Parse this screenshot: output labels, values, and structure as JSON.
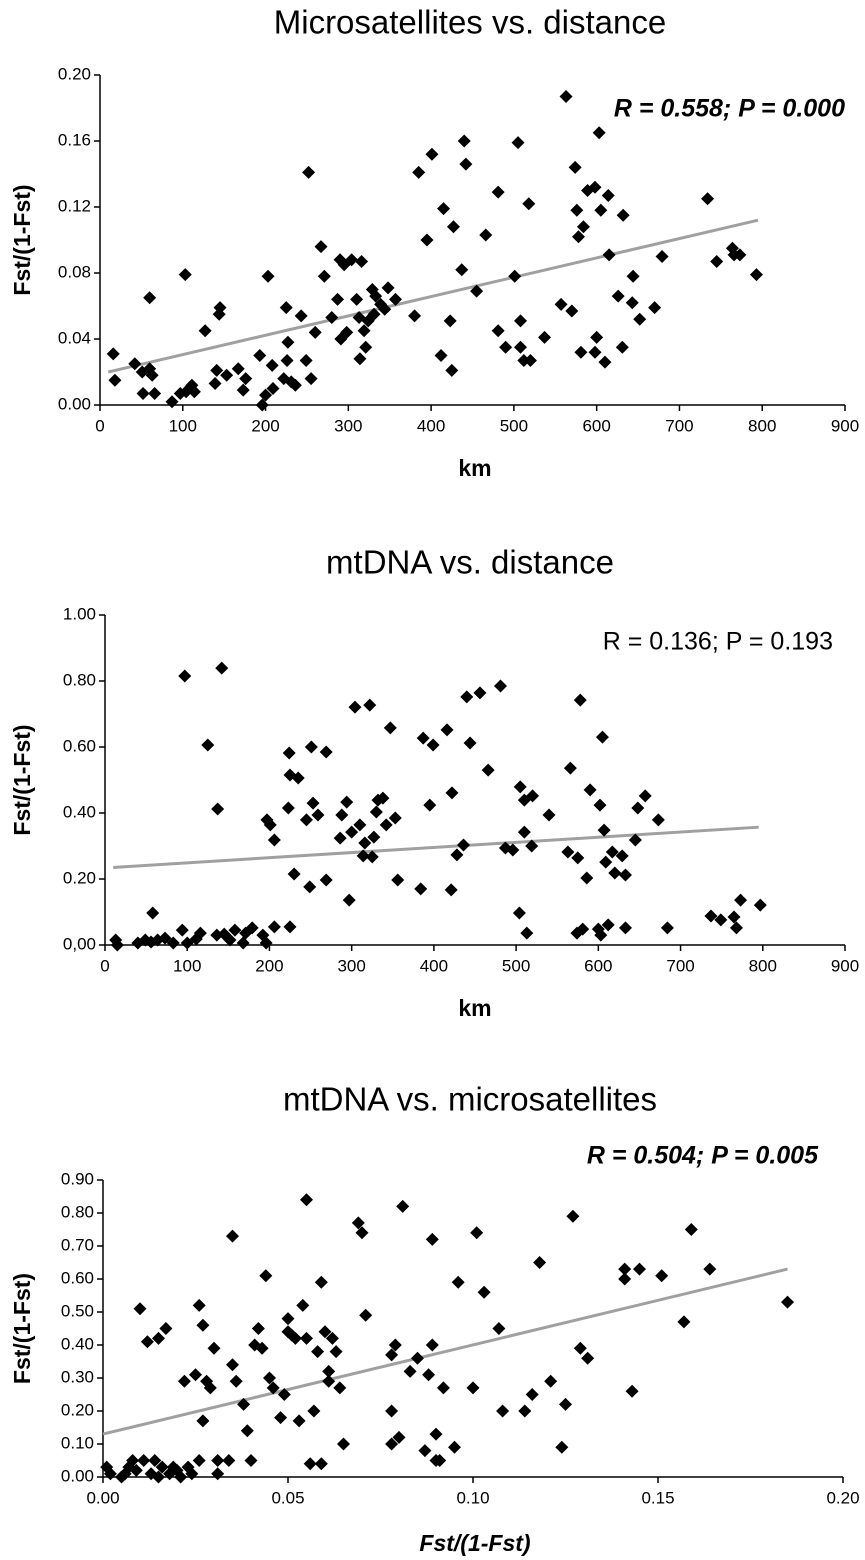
{
  "chart_data": [
    {
      "type": "scatter",
      "title": "Microsatellites vs. distance",
      "xlabel": "km",
      "ylabel": "Fst/(1-Fst)",
      "annotation": "R = 0.558; P = 0.000",
      "annotation_bold": true,
      "color": "#000000",
      "trend_color": "#a0a0a0",
      "x": [
        16,
        18,
        42,
        51,
        52,
        60,
        60,
        63,
        66,
        87,
        97,
        103,
        104,
        111,
        114,
        127,
        139,
        141,
        144,
        145,
        153,
        167,
        173,
        176,
        193,
        196,
        200,
        203,
        208,
        209,
        222,
        225,
        226,
        227,
        231,
        236,
        243,
        249,
        252,
        255,
        260,
        267,
        271,
        280,
        287,
        290,
        291,
        295,
        298,
        304,
        310,
        313,
        314,
        316,
        319,
        321,
        324,
        329,
        331,
        333,
        339,
        344,
        348,
        357,
        380,
        385,
        395,
        401,
        412,
        415,
        423,
        425,
        427,
        437,
        440,
        442,
        455,
        466,
        481,
        481,
        490,
        501,
        505,
        508,
        508,
        512,
        518,
        520,
        537,
        557,
        563,
        570,
        574,
        576,
        578,
        581,
        584,
        589,
        598,
        598,
        600,
        603,
        605,
        610,
        614,
        615,
        626,
        631,
        632,
        643,
        644,
        652,
        670,
        679,
        734,
        745,
        764,
        766,
        773,
        793
      ],
      "values": [
        0.031,
        0.015,
        0.025,
        0.02,
        0.007,
        0.022,
        0.065,
        0.018,
        0.007,
        0.002,
        0.007,
        0.079,
        0.008,
        0.012,
        0.008,
        0.045,
        0.013,
        0.021,
        0.055,
        0.059,
        0.018,
        0.022,
        0.009,
        0.016,
        0.03,
        0.0,
        0.006,
        0.078,
        0.024,
        0.01,
        0.016,
        0.059,
        0.027,
        0.038,
        0.014,
        0.012,
        0.054,
        0.027,
        0.141,
        0.016,
        0.044,
        0.096,
        0.078,
        0.053,
        0.064,
        0.088,
        0.04,
        0.085,
        0.044,
        0.088,
        0.064,
        0.053,
        0.028,
        0.087,
        0.045,
        0.035,
        0.051,
        0.07,
        0.055,
        0.066,
        0.061,
        0.058,
        0.071,
        0.064,
        0.054,
        0.141,
        0.1,
        0.152,
        0.03,
        0.119,
        0.051,
        0.021,
        0.108,
        0.082,
        0.16,
        0.146,
        0.069,
        0.103,
        0.129,
        0.045,
        0.035,
        0.078,
        0.159,
        0.051,
        0.035,
        0.027,
        0.122,
        0.027,
        0.041,
        0.061,
        0.187,
        0.057,
        0.144,
        0.118,
        0.102,
        0.032,
        0.108,
        0.13,
        0.032,
        0.132,
        0.041,
        0.165,
        0.118,
        0.026,
        0.127,
        0.091,
        0.066,
        0.035,
        0.115,
        0.062,
        0.078,
        0.052,
        0.059,
        0.09,
        0.125,
        0.087,
        0.095,
        0.091,
        0.091,
        0.079
      ],
      "trendline": {
        "x": [
          10,
          795
        ],
        "y": [
          0.02,
          0.112
        ]
      },
      "xlim": [
        0,
        900
      ],
      "xticks": [
        0,
        100,
        200,
        300,
        400,
        500,
        600,
        700,
        800,
        900
      ],
      "ylim": [
        0,
        0.2
      ],
      "yticks": [
        {
          "value": 0,
          "label": "0.00"
        },
        {
          "value": 0.04,
          "label": "0.04"
        },
        {
          "value": 0.08,
          "label": "0.08"
        },
        {
          "value": 0.12,
          "label": "0.12"
        },
        {
          "value": 0.16,
          "label": "0.16"
        },
        {
          "value": 0.2,
          "label": "0.20"
        }
      ]
    },
    {
      "type": "scatter",
      "title": "mtDNA vs. distance",
      "xlabel": "km",
      "ylabel": "Fst/(1-Fst)",
      "annotation": "R = 0.136; P = 0.193",
      "annotation_bold": false,
      "color": "#000000",
      "trend_color": "#a0a0a0",
      "x": [
        13,
        15,
        40,
        49,
        56,
        58,
        64,
        73,
        83,
        94,
        97,
        100,
        111,
        116,
        125,
        136,
        137,
        142,
        145,
        152,
        158,
        168,
        171,
        179,
        192,
        196,
        197,
        201,
        206,
        206,
        223,
        224,
        225,
        225,
        230,
        235,
        245,
        249,
        251,
        253,
        259,
        269,
        269,
        286,
        288,
        294,
        297,
        300,
        304,
        310,
        314,
        316,
        322,
        325,
        327,
        330,
        332,
        338,
        342,
        347,
        353,
        356,
        384,
        387,
        395,
        399,
        416,
        421,
        422,
        428,
        436,
        440,
        444,
        456,
        466,
        481,
        487,
        496,
        504,
        505,
        510,
        510,
        513,
        519,
        520,
        540,
        563,
        566,
        574,
        575,
        578,
        581,
        586,
        590,
        600,
        602,
        603,
        605,
        607,
        609,
        612,
        617,
        620,
        629,
        633,
        633,
        645,
        648,
        657,
        673,
        684,
        737,
        749,
        765,
        768,
        773,
        797
      ],
      "values": [
        0.015,
        0.0,
        0.006,
        0.015,
        0.009,
        0.097,
        0.015,
        0.021,
        0.006,
        0.045,
        0.815,
        0.006,
        0.018,
        0.036,
        0.606,
        0.03,
        0.412,
        0.839,
        0.033,
        0.015,
        0.045,
        0.006,
        0.036,
        0.052,
        0.03,
        0.006,
        0.379,
        0.364,
        0.318,
        0.055,
        0.415,
        0.582,
        0.055,
        0.515,
        0.215,
        0.506,
        0.379,
        0.176,
        0.6,
        0.43,
        0.394,
        0.585,
        0.197,
        0.324,
        0.394,
        0.433,
        0.136,
        0.342,
        0.721,
        0.364,
        0.27,
        0.309,
        0.727,
        0.267,
        0.327,
        0.403,
        0.439,
        0.445,
        0.364,
        0.658,
        0.385,
        0.197,
        0.17,
        0.627,
        0.424,
        0.606,
        0.652,
        0.167,
        0.461,
        0.273,
        0.303,
        0.752,
        0.612,
        0.764,
        0.53,
        0.785,
        0.294,
        0.288,
        0.097,
        0.479,
        0.439,
        0.342,
        0.036,
        0.3,
        0.452,
        0.394,
        0.282,
        0.536,
        0.036,
        0.264,
        0.742,
        0.048,
        0.203,
        0.47,
        0.048,
        0.424,
        0.03,
        0.63,
        0.348,
        0.251,
        0.061,
        0.282,
        0.218,
        0.27,
        0.052,
        0.212,
        0.318,
        0.415,
        0.452,
        0.379,
        0.052,
        0.088,
        0.076,
        0.085,
        0.052,
        0.136,
        0.121
      ],
      "trendline": {
        "x": [
          10,
          795
        ],
        "y": [
          0.235,
          0.357
        ]
      },
      "xlim": [
        0,
        900
      ],
      "xticks": [
        0,
        100,
        200,
        300,
        400,
        500,
        600,
        700,
        800,
        900
      ],
      "ylim": [
        0,
        1
      ],
      "yticks": [
        {
          "value": 0,
          "label": "0,00"
        },
        {
          "value": 0.2,
          "label": "0.20"
        },
        {
          "value": 0.4,
          "label": "0.40"
        },
        {
          "value": 0.6,
          "label": "0.60"
        },
        {
          "value": 0.8,
          "label": "0.80"
        },
        {
          "value": 1,
          "label": "1.00"
        }
      ]
    },
    {
      "type": "scatter",
      "title": "mtDNA vs. microsatellites",
      "xlabel": "Fst/(1-Fst)",
      "ylabel": "Fst/(1-Fst)",
      "annotation": "R = 0.504; P = 0.005",
      "annotation_bold": true,
      "color": "#000000",
      "trend_color": "#a0a0a0",
      "x": [
        0.001,
        0.002,
        0.005,
        0.006,
        0.007,
        0.008,
        0.009,
        0.01,
        0.011,
        0.012,
        0.013,
        0.014,
        0.015,
        0.016,
        0.017,
        0.015,
        0.018,
        0.019,
        0.02,
        0.021,
        0.022,
        0.023,
        0.024,
        0.025,
        0.026,
        0.026,
        0.027,
        0.027,
        0.028,
        0.029,
        0.03,
        0.031,
        0.031,
        0.034,
        0.035,
        0.035,
        0.036,
        0.038,
        0.039,
        0.04,
        0.041,
        0.042,
        0.043,
        0.044,
        0.045,
        0.046,
        0.048,
        0.049,
        0.05,
        0.05,
        0.051,
        0.052,
        0.053,
        0.054,
        0.055,
        0.055,
        0.056,
        0.057,
        0.058,
        0.059,
        0.059,
        0.06,
        0.061,
        0.061,
        0.062,
        0.063,
        0.064,
        0.065,
        0.069,
        0.07,
        0.071,
        0.078,
        0.078,
        0.078,
        0.079,
        0.08,
        0.081,
        0.083,
        0.085,
        0.087,
        0.088,
        0.089,
        0.089,
        0.09,
        0.09,
        0.091,
        0.092,
        0.095,
        0.096,
        0.1,
        0.101,
        0.103,
        0.107,
        0.108,
        0.114,
        0.116,
        0.118,
        0.121,
        0.124,
        0.125,
        0.127,
        0.129,
        0.131,
        0.141,
        0.141,
        0.143,
        0.145,
        0.151,
        0.157,
        0.159,
        0.164,
        0.185
      ],
      "values": [
        0.03,
        0.01,
        0.0,
        0.01,
        0.03,
        0.05,
        0.02,
        0.51,
        0.05,
        0.41,
        0.01,
        0.05,
        0.42,
        0.03,
        0.45,
        0.0,
        0.01,
        0.03,
        0.02,
        0.0,
        0.29,
        0.03,
        0.01,
        0.31,
        0.52,
        0.05,
        0.17,
        0.46,
        0.29,
        0.27,
        0.39,
        0.01,
        0.05,
        0.05,
        0.73,
        0.34,
        0.29,
        0.22,
        0.14,
        0.05,
        0.4,
        0.45,
        0.39,
        0.61,
        0.3,
        0.27,
        0.18,
        0.25,
        0.48,
        0.44,
        0.43,
        0.42,
        0.17,
        0.52,
        0.84,
        0.42,
        0.04,
        0.2,
        0.38,
        0.59,
        0.04,
        0.44,
        0.29,
        0.32,
        0.42,
        0.38,
        0.27,
        0.1,
        0.77,
        0.74,
        0.49,
        0.37,
        0.2,
        0.1,
        0.4,
        0.12,
        0.82,
        0.32,
        0.36,
        0.08,
        0.31,
        0.4,
        0.72,
        0.13,
        0.05,
        0.05,
        0.27,
        0.09,
        0.59,
        0.27,
        0.74,
        0.56,
        0.45,
        0.2,
        0.2,
        0.25,
        0.65,
        0.29,
        0.09,
        0.22,
        0.79,
        0.39,
        0.36,
        0.6,
        0.63,
        0.26,
        0.63,
        0.61,
        0.47,
        0.75,
        0.63,
        0.53
      ],
      "trendline": {
        "x": [
          0,
          0.185
        ],
        "y": [
          0.13,
          0.63
        ]
      },
      "xlim": [
        0,
        0.2
      ],
      "xticks": [
        {
          "value": 0,
          "label": "0.00"
        },
        {
          "value": 0.05,
          "label": "0.05"
        },
        {
          "value": 0.1,
          "label": "0.10"
        },
        {
          "value": 0.15,
          "label": "0.15"
        },
        {
          "value": 0.2,
          "label": "0.20"
        }
      ],
      "ylim": [
        0,
        0.9
      ],
      "yticks": [
        {
          "value": 0,
          "label": "0.00"
        },
        {
          "value": 0.1,
          "label": "0.10"
        },
        {
          "value": 0.2,
          "label": "0.20"
        },
        {
          "value": 0.3,
          "label": "0.30"
        },
        {
          "value": 0.4,
          "label": "0.40"
        },
        {
          "value": 0.5,
          "label": "0.50"
        },
        {
          "value": 0.6,
          "label": "0.60"
        },
        {
          "value": 0.7,
          "label": "0.70"
        },
        {
          "value": 0.8,
          "label": "0.80"
        },
        {
          "value": 0.9,
          "label": "0.90"
        }
      ]
    }
  ]
}
